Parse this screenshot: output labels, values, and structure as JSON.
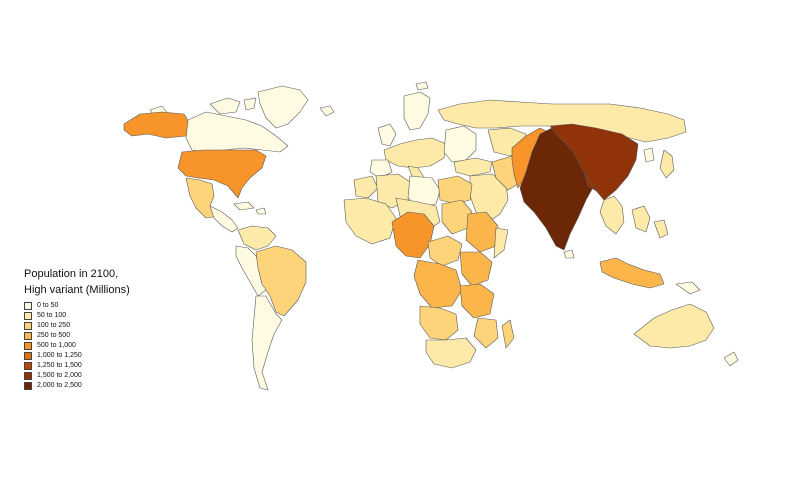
{
  "legend": {
    "title_line1": "Population in 2100,",
    "title_line2": "High variant (Millions)",
    "items": [
      {
        "label": "0 to 50",
        "color": "#fffbe2"
      },
      {
        "label": "50 to 100",
        "color": "#fdeaa9"
      },
      {
        "label": "100 to 250",
        "color": "#fdd47a"
      },
      {
        "label": "250 to 500",
        "color": "#fcb54a"
      },
      {
        "label": "500 to 1,000",
        "color": "#f8952a"
      },
      {
        "label": "1,000 to 1,250",
        "color": "#e06f14"
      },
      {
        "label": "1,250 to 1,500",
        "color": "#b9470a"
      },
      {
        "label": "1,500 to 2,000",
        "color": "#913309"
      },
      {
        "label": "2,000 to 2,500",
        "color": "#6b2706"
      }
    ]
  }
}
